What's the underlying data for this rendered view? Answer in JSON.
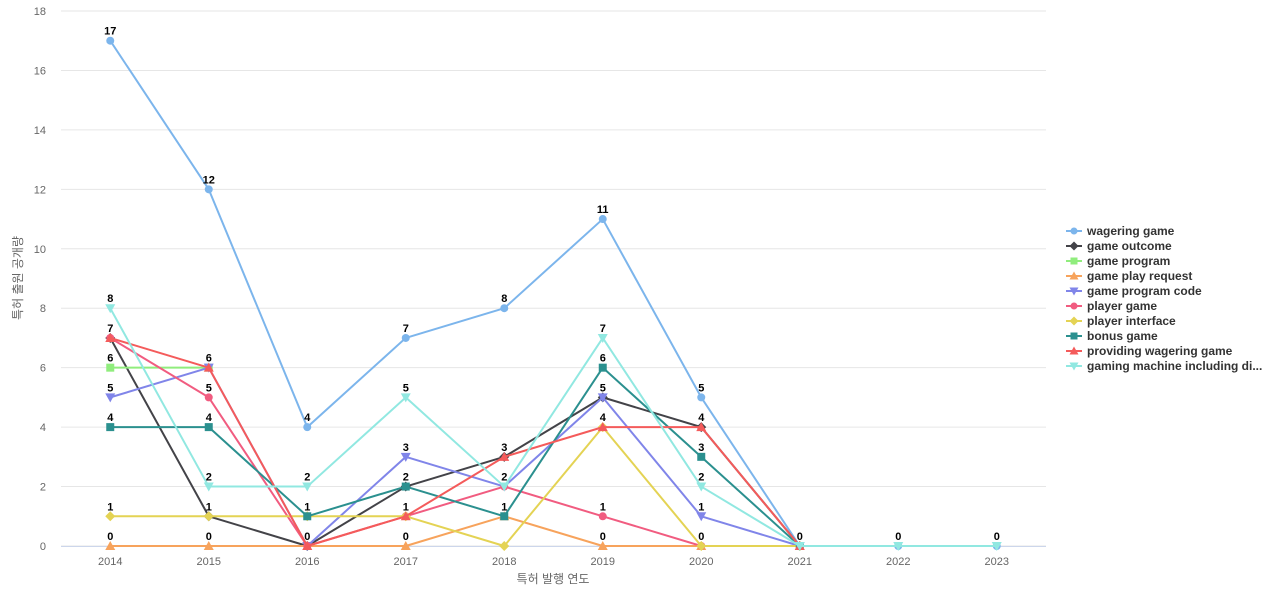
{
  "chart_data": {
    "type": "line",
    "title": "",
    "xlabel": "특허 발행 연도",
    "ylabel": "특허 출원 공개량",
    "ylim": [
      0,
      18
    ],
    "yticks": [
      0,
      2,
      4,
      6,
      8,
      10,
      12,
      14,
      16,
      18
    ],
    "grid": true,
    "legend_position": "right",
    "categories": [
      "2014",
      "2015",
      "2016",
      "2017",
      "2018",
      "2019",
      "2020",
      "2021",
      "2022",
      "2023"
    ],
    "series": [
      {
        "name": "wagering game",
        "color": "#7cb5ec",
        "marker": "circle",
        "values": [
          17,
          12,
          4,
          7,
          8,
          11,
          5,
          0,
          0,
          0
        ]
      },
      {
        "name": "game outcome",
        "color": "#434348",
        "marker": "diamond",
        "values": [
          7,
          1,
          0,
          2,
          3,
          5,
          4,
          0,
          null,
          null
        ]
      },
      {
        "name": "game program",
        "color": "#90ed7d",
        "marker": "square",
        "values": [
          6,
          6,
          null,
          null,
          null,
          null,
          null,
          null,
          null,
          null
        ]
      },
      {
        "name": "game play request",
        "color": "#f7a35c",
        "marker": "triangle",
        "values": [
          0,
          0,
          0,
          0,
          1,
          0,
          0,
          0,
          null,
          null
        ]
      },
      {
        "name": "game program code",
        "color": "#8085e9",
        "marker": "triangle-down",
        "values": [
          5,
          6,
          0,
          3,
          2,
          5,
          1,
          0,
          null,
          null
        ]
      },
      {
        "name": "player game",
        "color": "#f15c80",
        "marker": "circle",
        "values": [
          7,
          5,
          0,
          1,
          2,
          1,
          0,
          0,
          null,
          null
        ]
      },
      {
        "name": "player interface",
        "color": "#e4d354",
        "marker": "diamond",
        "values": [
          1,
          1,
          1,
          1,
          0,
          4,
          0,
          0,
          null,
          null
        ]
      },
      {
        "name": "bonus game",
        "color": "#2b908f",
        "marker": "square",
        "values": [
          4,
          4,
          1,
          2,
          1,
          6,
          3,
          0,
          null,
          null
        ]
      },
      {
        "name": "providing wagering game",
        "color": "#f45b5b",
        "marker": "triangle",
        "values": [
          7,
          6,
          0,
          1,
          3,
          4,
          4,
          0,
          null,
          null
        ]
      },
      {
        "name": "gaming machine including di...",
        "color": "#91e8e1",
        "marker": "triangle-down",
        "values": [
          8,
          2,
          2,
          5,
          2,
          7,
          2,
          0,
          0,
          0
        ]
      }
    ],
    "data_labels": [
      {
        "x": "2014",
        "values": [
          "17",
          "8",
          "7",
          "6",
          "5",
          "4",
          "1",
          "0"
        ]
      },
      {
        "x": "2015",
        "values": [
          "12",
          "6",
          "5",
          "4",
          "2",
          "1",
          "0"
        ]
      },
      {
        "x": "2016",
        "values": [
          "4",
          "2",
          "1",
          "0"
        ]
      },
      {
        "x": "2017",
        "values": [
          "7",
          "5",
          "3",
          "2",
          "1",
          "0"
        ]
      },
      {
        "x": "2018",
        "values": [
          "8",
          "3",
          "2",
          "1"
        ]
      },
      {
        "x": "2019",
        "values": [
          "11",
          "7",
          "6",
          "5",
          "4",
          "1",
          "0"
        ]
      },
      {
        "x": "2020",
        "values": [
          "5",
          "4",
          "3",
          "2",
          "1",
          "0"
        ]
      },
      {
        "x": "2021",
        "values": [
          "0"
        ]
      },
      {
        "x": "2022",
        "values": [
          "0"
        ]
      },
      {
        "x": "2023",
        "values": [
          "0"
        ]
      }
    ]
  }
}
